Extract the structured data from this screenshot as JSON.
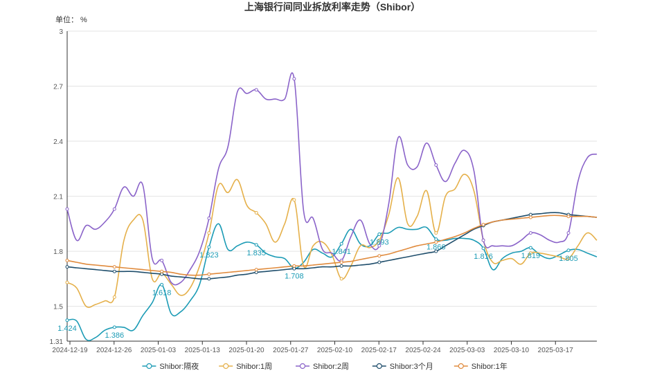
{
  "chart_data": {
    "type": "line",
    "title": "上海银行间同业拆放利率走势（Shibor）",
    "unit_label": "单位： %",
    "ylim": [
      1.31,
      3
    ],
    "y_ticks": [
      "1.31",
      "1.5",
      "1.8",
      "2.1",
      "2.4",
      "2.7",
      "3"
    ],
    "x_ticks": [
      "2024-12-19",
      "2024-12-26",
      "2025-01-03",
      "2025-01-13",
      "2025-01-20",
      "2025-01-27",
      "2025-02-10",
      "2025-02-17",
      "2025-02-24",
      "2025-03-03",
      "2025-03-10",
      "2025-03-17"
    ],
    "grid": true,
    "legend_position": "bottom",
    "series": [
      {
        "name": "Shibor:隔夜",
        "color": "#1b9bb5",
        "values": [
          1.424,
          1.42,
          1.32,
          1.33,
          1.37,
          1.386,
          1.385,
          1.37,
          1.45,
          1.52,
          1.618,
          1.46,
          1.47,
          1.53,
          1.62,
          1.823,
          1.95,
          1.81,
          1.83,
          1.85,
          1.835,
          1.79,
          1.77,
          1.76,
          1.708,
          1.74,
          1.81,
          1.79,
          1.77,
          1.841,
          1.92,
          1.84,
          1.83,
          1.893,
          1.9,
          1.93,
          1.92,
          1.92,
          1.93,
          1.866,
          1.86,
          1.87,
          1.87,
          1.86,
          1.816,
          1.7,
          1.76,
          1.79,
          1.8,
          1.819,
          1.78,
          1.76,
          1.78,
          1.805,
          1.81,
          1.79,
          1.77
        ],
        "labels": [
          {
            "index": 0,
            "text": "1.424"
          },
          {
            "index": 5,
            "text": "1.386"
          },
          {
            "index": 10,
            "text": "1.618"
          },
          {
            "index": 15,
            "text": "1.823"
          },
          {
            "index": 20,
            "text": "1.835"
          },
          {
            "index": 24,
            "text": "1.708"
          },
          {
            "index": 29,
            "text": "1.841"
          },
          {
            "index": 33,
            "text": "1.893"
          },
          {
            "index": 39,
            "text": "1.866"
          },
          {
            "index": 44,
            "text": "1.816"
          },
          {
            "index": 49,
            "text": "1.819"
          },
          {
            "index": 53,
            "text": "1.805"
          }
        ]
      },
      {
        "name": "Shibor:1周",
        "color": "#e5b04a",
        "values": [
          1.63,
          1.6,
          1.5,
          1.51,
          1.53,
          1.55,
          1.86,
          1.97,
          1.97,
          1.65,
          1.68,
          1.62,
          1.56,
          1.6,
          1.72,
          1.9,
          2.16,
          2.12,
          2.19,
          2.05,
          2.01,
          1.95,
          1.85,
          1.95,
          2.08,
          1.72,
          1.83,
          1.85,
          1.78,
          1.65,
          1.72,
          1.83,
          1.82,
          1.86,
          2.0,
          2.2,
          1.95,
          1.99,
          2.13,
          1.9,
          2.1,
          2.14,
          2.22,
          2.13,
          1.86,
          1.74,
          1.75,
          1.76,
          1.73,
          1.79,
          1.79,
          1.78,
          1.77,
          1.76,
          1.83,
          1.9,
          1.86
        ]
      },
      {
        "name": "Shibor:2周",
        "color": "#8a63c9",
        "values": [
          2.03,
          1.86,
          1.94,
          1.92,
          1.96,
          2.03,
          2.15,
          2.1,
          2.16,
          1.76,
          1.75,
          1.63,
          1.63,
          1.7,
          1.8,
          1.98,
          2.25,
          2.37,
          2.67,
          2.66,
          2.68,
          2.63,
          2.63,
          2.63,
          2.74,
          2.02,
          1.98,
          1.81,
          1.79,
          1.75,
          1.88,
          1.97,
          1.84,
          1.83,
          2.06,
          2.42,
          2.27,
          2.26,
          2.39,
          2.27,
          2.18,
          2.28,
          2.35,
          2.24,
          1.86,
          1.83,
          1.83,
          1.83,
          1.86,
          1.9,
          1.89,
          1.86,
          1.85,
          1.9,
          2.18,
          2.31,
          2.33
        ]
      },
      {
        "name": "Shibor:3个月",
        "color": "#1e4d6b",
        "values": [
          1.715,
          1.71,
          1.705,
          1.7,
          1.695,
          1.69,
          1.69,
          1.69,
          1.685,
          1.68,
          1.675,
          1.665,
          1.66,
          1.655,
          1.65,
          1.65,
          1.655,
          1.66,
          1.67,
          1.675,
          1.685,
          1.69,
          1.695,
          1.7,
          1.705,
          1.705,
          1.71,
          1.715,
          1.715,
          1.72,
          1.72,
          1.725,
          1.73,
          1.74,
          1.75,
          1.76,
          1.77,
          1.78,
          1.79,
          1.8,
          1.83,
          1.86,
          1.89,
          1.92,
          1.94,
          1.96,
          1.97,
          1.98,
          1.99,
          2.0,
          2.005,
          2.01,
          2.01,
          2.0,
          1.995,
          1.99,
          1.985
        ]
      },
      {
        "name": "Shibor:1年",
        "color": "#e08a3c",
        "values": [
          1.75,
          1.74,
          1.73,
          1.725,
          1.72,
          1.715,
          1.71,
          1.705,
          1.7,
          1.695,
          1.69,
          1.685,
          1.675,
          1.67,
          1.67,
          1.675,
          1.68,
          1.685,
          1.69,
          1.695,
          1.7,
          1.705,
          1.71,
          1.715,
          1.72,
          1.72,
          1.725,
          1.73,
          1.735,
          1.74,
          1.745,
          1.755,
          1.765,
          1.775,
          1.785,
          1.8,
          1.815,
          1.83,
          1.84,
          1.85,
          1.865,
          1.88,
          1.9,
          1.925,
          1.945,
          1.96,
          1.97,
          1.975,
          1.98,
          1.985,
          1.99,
          1.995,
          1.995,
          1.99,
          1.99,
          1.99,
          1.985
        ]
      }
    ]
  }
}
